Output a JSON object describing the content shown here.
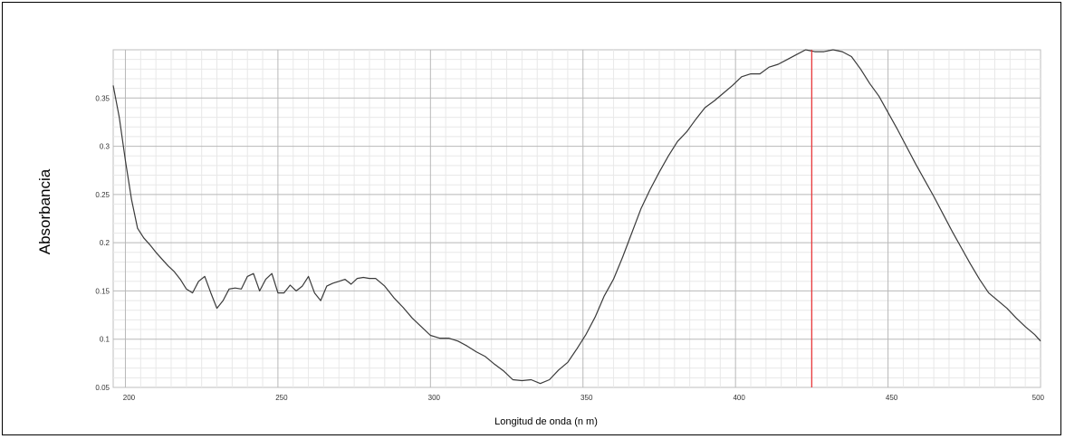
{
  "chart_data": {
    "type": "line",
    "xlabel": "Longitud de onda (n m)",
    "ylabel": "Absorbancia",
    "xlim": [
      196,
      500
    ],
    "ylim": [
      0.05,
      0.4
    ],
    "xticks": [
      200,
      250,
      300,
      350,
      400,
      450,
      500
    ],
    "yticks": [
      0.05,
      0.1,
      0.15,
      0.2,
      0.25,
      0.3,
      0.35
    ],
    "xtick_labels": [
      "200",
      "250",
      "300",
      "350",
      "400",
      "450",
      "500"
    ],
    "ytick_labels": [
      "0.05",
      "0.1",
      "0.15",
      "0.2",
      "0.25",
      "0.3",
      "0.35"
    ],
    "grid": true,
    "minor_grid": true,
    "marker_line": {
      "x": 425,
      "color": "#e8383b"
    },
    "line_color": "#3a3a3a",
    "series": [
      {
        "x": [
          196,
          198,
          200,
          202,
          204,
          206,
          208,
          210,
          212,
          214,
          216,
          218,
          220,
          222,
          224,
          226,
          228,
          230,
          232,
          234,
          236,
          238,
          240,
          242,
          244,
          246,
          248,
          250,
          252,
          254,
          256,
          258,
          260,
          262,
          264,
          266,
          268,
          270,
          272,
          274,
          276,
          278,
          280,
          282,
          285,
          288,
          291,
          294,
          297,
          300,
          303,
          306,
          309,
          312,
          315,
          318,
          321,
          324,
          327,
          330,
          333,
          336,
          339,
          342,
          345,
          348,
          351,
          354,
          357,
          360,
          363,
          366,
          369,
          372,
          375,
          378,
          381,
          384,
          387,
          390,
          393,
          396,
          399,
          402,
          405,
          408,
          411,
          414,
          417,
          420,
          423,
          426,
          429,
          432,
          435,
          438,
          441,
          444,
          447,
          450,
          453,
          456,
          459,
          462,
          465,
          468,
          471,
          474,
          477,
          480,
          483,
          486,
          489,
          492,
          495,
          498,
          500
        ],
        "values": [
          0.363,
          0.33,
          0.285,
          0.245,
          0.215,
          0.205,
          0.198,
          0.19,
          0.183,
          0.176,
          0.17,
          0.162,
          0.152,
          0.148,
          0.16,
          0.165,
          0.148,
          0.132,
          0.14,
          0.152,
          0.153,
          0.152,
          0.165,
          0.168,
          0.15,
          0.162,
          0.168,
          0.148,
          0.148,
          0.156,
          0.15,
          0.155,
          0.165,
          0.148,
          0.14,
          0.155,
          0.158,
          0.16,
          0.162,
          0.157,
          0.163,
          0.164,
          0.163,
          0.163,
          0.155,
          0.143,
          0.133,
          0.122,
          0.113,
          0.104,
          0.101,
          0.101,
          0.098,
          0.093,
          0.087,
          0.082,
          0.074,
          0.067,
          0.058,
          0.057,
          0.058,
          0.054,
          0.058,
          0.068,
          0.076,
          0.09,
          0.105,
          0.123,
          0.145,
          0.162,
          0.185,
          0.21,
          0.235,
          0.255,
          0.273,
          0.29,
          0.305,
          0.315,
          0.328,
          0.34,
          0.347,
          0.355,
          0.363,
          0.372,
          0.375,
          0.375,
          0.382,
          0.385,
          0.39,
          0.395,
          0.4,
          0.398,
          0.398,
          0.4,
          0.398,
          0.393,
          0.38,
          0.365,
          0.352,
          0.335,
          0.318,
          0.3,
          0.282,
          0.265,
          0.248,
          0.23,
          0.212,
          0.195,
          0.178,
          0.162,
          0.148,
          0.14,
          0.132,
          0.122,
          0.113,
          0.105,
          0.098
        ]
      }
    ]
  }
}
